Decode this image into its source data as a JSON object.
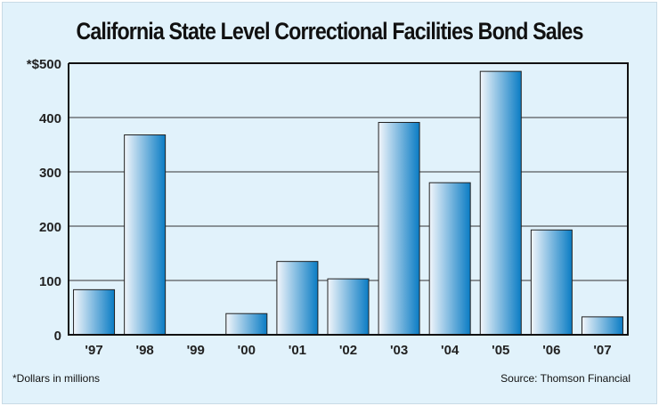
{
  "chart_data": {
    "type": "bar",
    "title": "California State Level Correctional Facilities Bond Sales",
    "categories": [
      "'97",
      "'98",
      "'99",
      "'00",
      "'01",
      "'02",
      "'03",
      "'04",
      "'05",
      "'06",
      "'07"
    ],
    "values": [
      83,
      368,
      0,
      39,
      135,
      103,
      391,
      280,
      485,
      193,
      33
    ],
    "ylim": [
      0,
      500
    ],
    "yticks": [
      0,
      100,
      200,
      300,
      400,
      500
    ],
    "ytick_labels": [
      "0",
      "100",
      "200",
      "300",
      "400",
      "*$500"
    ],
    "xlabel": "",
    "ylabel": "",
    "grid": true,
    "footnote": "*Dollars in millions",
    "source": "Source: Thomson Financial",
    "colors": {
      "bar_light": "#eef4fb",
      "bar_dark": "#0a7cc4",
      "background": "#e1f2fb"
    }
  }
}
